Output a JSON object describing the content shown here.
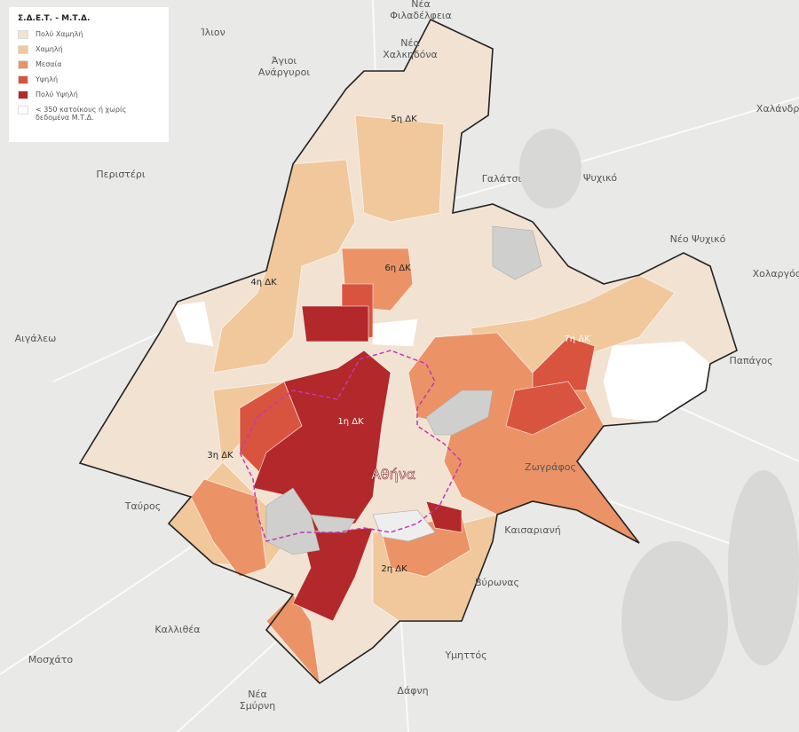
{
  "legend": {
    "title": "Σ.Δ.Ε.Τ. - Μ.Τ.Δ.",
    "items": [
      {
        "label": "Πολύ Χαμηλή",
        "color": "#f2e2d2"
      },
      {
        "label": "Χαμηλή",
        "color": "#f0c89c"
      },
      {
        "label": "Μεσαία",
        "color": "#eb9366"
      },
      {
        "label": "Υψηλή",
        "color": "#d9543e"
      },
      {
        "label": "Πολύ Υψηλή",
        "color": "#b3282a"
      },
      {
        "label": "< 350 κατοίκους ή χωρίς δεδομένα Μ.Τ.Δ.",
        "color": "#ffffff"
      }
    ]
  },
  "districts": [
    "1η ΔΚ",
    "2η ΔΚ",
    "3η ΔΚ",
    "4η ΔΚ",
    "5η ΔΚ",
    "6η ΔΚ",
    "7η ΔΚ"
  ],
  "city": "Αθήνα",
  "places": [
    {
      "lines": [
        "Νέα",
        "Φιλαδέλφεια"
      ]
    },
    {
      "lines": [
        "Ίλιον"
      ]
    },
    {
      "lines": [
        "Άγιοι",
        "Ανάργυροι"
      ]
    },
    {
      "lines": [
        "Νέα",
        "Χαλκηδόνα"
      ]
    },
    {
      "lines": [
        "Χαλάνδρι"
      ]
    },
    {
      "lines": [
        "Περιστέρι"
      ]
    },
    {
      "lines": [
        "Γαλάτσι"
      ]
    },
    {
      "lines": [
        "Ψυχικό"
      ]
    },
    {
      "lines": [
        "Νέο Ψυχικό"
      ]
    },
    {
      "lines": [
        "Χολαργός"
      ]
    },
    {
      "lines": [
        "Αιγάλεω"
      ]
    },
    {
      "lines": [
        "Παπάγος"
      ]
    },
    {
      "lines": [
        "Ζωγράφος"
      ]
    },
    {
      "lines": [
        "Ταύρος"
      ]
    },
    {
      "lines": [
        "Καισαριανή"
      ]
    },
    {
      "lines": [
        "Βύρωνας"
      ]
    },
    {
      "lines": [
        "Καλλιθέα"
      ]
    },
    {
      "lines": [
        "Μοσχάτο"
      ]
    },
    {
      "lines": [
        "Υμηττός"
      ]
    },
    {
      "lines": [
        "Δάφνη"
      ]
    },
    {
      "lines": [
        "Νέα",
        "Σμύρνη"
      ]
    }
  ]
}
